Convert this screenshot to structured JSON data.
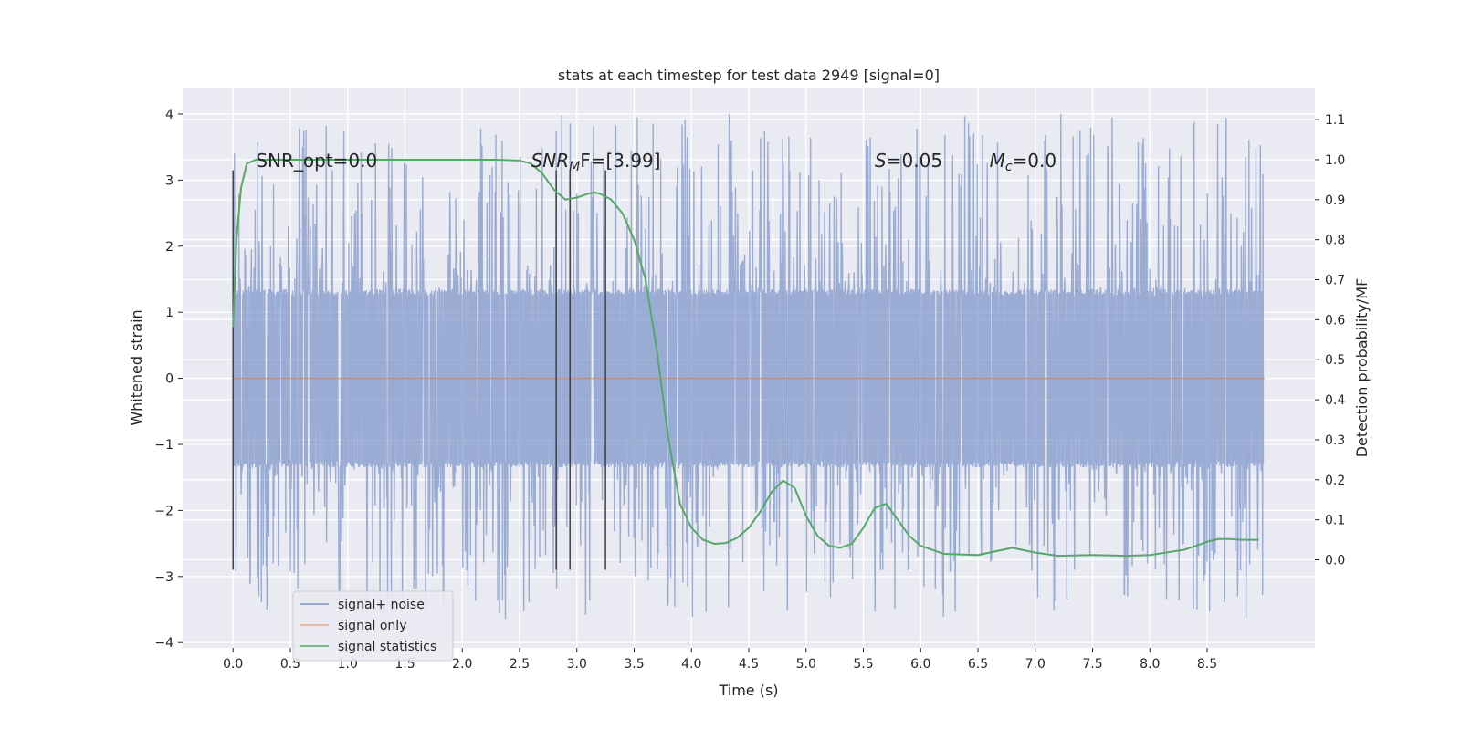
{
  "chart_data": {
    "type": "line",
    "title": "stats at each timestep for test data 2949 [signal=0]",
    "xlabel": "Time (s)",
    "ylabel": "Whitened strain",
    "y2label": "Detection probability/MF",
    "xlim": [
      -0.44,
      9.44
    ],
    "ylim": [
      -4.08,
      4.4
    ],
    "y2lim": [
      -0.22,
      1.18
    ],
    "xticks": [
      0.0,
      0.5,
      1.0,
      1.5,
      2.0,
      2.5,
      3.0,
      3.5,
      4.0,
      4.5,
      5.0,
      5.5,
      6.0,
      6.5,
      7.0,
      7.5,
      8.0,
      8.5
    ],
    "xtick_labels": [
      "0.0",
      "0.5",
      "1.0",
      "1.5",
      "2.0",
      "2.5",
      "3.0",
      "3.5",
      "4.0",
      "4.5",
      "5.0",
      "5.5",
      "6.0",
      "6.5",
      "7.0",
      "7.5",
      "8.0",
      "8.5"
    ],
    "yticks": [
      4,
      3,
      2,
      1,
      0,
      -1,
      -2,
      -3,
      -4
    ],
    "ytick_labels": [
      "4",
      "3",
      "2",
      "1",
      "0",
      "−1",
      "−2",
      "−3",
      "−4"
    ],
    "y2ticks": [
      1.1,
      1.0,
      0.9,
      0.8,
      0.7,
      0.6,
      0.5,
      0.4,
      0.3,
      0.2,
      0.1,
      0.0
    ],
    "y2tick_labels": [
      "1.1",
      "1.0",
      "0.9",
      "0.8",
      "0.7",
      "0.6",
      "0.5",
      "0.4",
      "0.3",
      "0.2",
      "0.1",
      "0.0"
    ],
    "grid": true,
    "legend_position": "lower-left",
    "colors": {
      "noise": "#7b94c8",
      "signal_only": "#dd8452",
      "statistics": "#55a868",
      "markers": "#3f3f46",
      "background": "#eaeaf2"
    },
    "noise": {
      "t_start": 0.0,
      "t_end": 8.99,
      "n_points": 2800,
      "seed": 2949,
      "core_amplitude": 1.35,
      "core_amplitude_range": [
        -1.35,
        1.35
      ],
      "peak_range": [
        -3.65,
        4.0
      ]
    },
    "series": [
      {
        "name": "signal+ noise",
        "kind": "noise"
      },
      {
        "name": "signal only",
        "kind": "flat",
        "x": [
          0.0,
          9.0
        ],
        "y": [
          0.0,
          0.0
        ]
      },
      {
        "name": "signal statistics",
        "kind": "curve",
        "axis": "right",
        "x": [
          0.0,
          0.03,
          0.07,
          0.12,
          0.2,
          0.3,
          0.5,
          1.0,
          1.5,
          2.0,
          2.3,
          2.5,
          2.6,
          2.7,
          2.8,
          2.9,
          3.0,
          3.1,
          3.15,
          3.2,
          3.3,
          3.4,
          3.5,
          3.6,
          3.7,
          3.8,
          3.9,
          4.0,
          4.1,
          4.2,
          4.3,
          4.4,
          4.5,
          4.6,
          4.7,
          4.8,
          4.9,
          5.0,
          5.1,
          5.2,
          5.3,
          5.4,
          5.5,
          5.6,
          5.7,
          5.8,
          5.9,
          6.0,
          6.2,
          6.5,
          6.8,
          7.0,
          7.2,
          7.5,
          7.8,
          8.0,
          8.3,
          8.5,
          8.6,
          8.7,
          8.8,
          8.95
        ],
        "y": [
          0.58,
          0.8,
          0.93,
          0.99,
          1.0,
          1.0,
          1.0,
          1.0,
          1.0,
          1.0,
          1.0,
          0.998,
          0.99,
          0.965,
          0.925,
          0.9,
          0.905,
          0.915,
          0.918,
          0.915,
          0.9,
          0.865,
          0.8,
          0.7,
          0.52,
          0.3,
          0.14,
          0.08,
          0.05,
          0.04,
          0.042,
          0.055,
          0.08,
          0.12,
          0.17,
          0.198,
          0.18,
          0.11,
          0.06,
          0.035,
          0.03,
          0.04,
          0.08,
          0.13,
          0.14,
          0.1,
          0.06,
          0.035,
          0.015,
          0.012,
          0.03,
          0.018,
          0.01,
          0.012,
          0.01,
          0.012,
          0.025,
          0.045,
          0.052,
          0.052,
          0.05,
          0.05
        ]
      }
    ],
    "vertical_markers": [
      {
        "x": 0.0,
        "y_range": [
          -2.9,
          3.15
        ]
      },
      {
        "x": 2.82,
        "y_range": [
          -2.9,
          3.15
        ]
      },
      {
        "x": 2.94,
        "y_range": [
          -2.9,
          3.15
        ]
      },
      {
        "x": 3.25,
        "y_range": [
          -2.9,
          3.15
        ]
      }
    ],
    "annotations": [
      {
        "id": "snr-opt",
        "text": "SNR_opt=0.0",
        "x": 0.2,
        "y": 3.2
      },
      {
        "id": "snr-mf",
        "text_main": "SNR",
        "text_sub": "M",
        "text_rest": "F=[3.99]",
        "x": 2.6,
        "y": 3.2
      },
      {
        "id": "s-stat",
        "text_main": "S",
        "text_rest": "=0.05",
        "x": 5.6,
        "y": 3.2
      },
      {
        "id": "mc-stat",
        "text_main": "M",
        "text_sub": "c",
        "text_rest": "=0.0",
        "x": 6.6,
        "y": 3.2
      }
    ]
  }
}
